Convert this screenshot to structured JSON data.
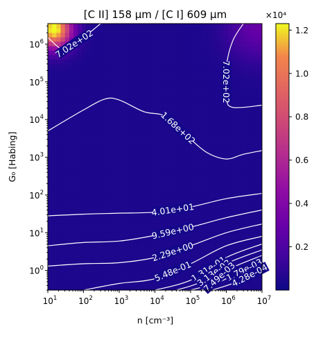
{
  "chart_data": {
    "type": "heatmap",
    "title": "[C II] 158 μm / [C I] 609 μm",
    "xlabel": "n [cm⁻³]",
    "ylabel": "G₀ [Habing]",
    "xscale": "log",
    "yscale": "log",
    "xlim": [
      10,
      10000000
    ],
    "ylim": [
      0.3,
      3500000
    ],
    "x_ticks": [
      {
        "value": 10,
        "base": "10",
        "exp": "1"
      },
      {
        "value": 100,
        "base": "10",
        "exp": "2"
      },
      {
        "value": 1000,
        "base": "10",
        "exp": "3"
      },
      {
        "value": 10000,
        "base": "10",
        "exp": "4"
      },
      {
        "value": 100000,
        "base": "10",
        "exp": "5"
      },
      {
        "value": 1000000,
        "base": "10",
        "exp": "6"
      },
      {
        "value": 10000000,
        "base": "10",
        "exp": "7"
      }
    ],
    "y_ticks": [
      {
        "value": 1,
        "base": "10",
        "exp": "0"
      },
      {
        "value": 10,
        "base": "10",
        "exp": "1"
      },
      {
        "value": 100,
        "base": "10",
        "exp": "2"
      },
      {
        "value": 1000,
        "base": "10",
        "exp": "3"
      },
      {
        "value": 10000,
        "base": "10",
        "exp": "4"
      },
      {
        "value": 100000,
        "base": "10",
        "exp": "5"
      },
      {
        "value": 1000000,
        "base": "10",
        "exp": "6"
      }
    ],
    "colorbar": {
      "colormap": "plasma",
      "range": [
        0,
        12300
      ],
      "multiplier": "×10⁴",
      "ticks": [
        {
          "value": 2000,
          "label": "0.2"
        },
        {
          "value": 4000,
          "label": "0.4"
        },
        {
          "value": 6000,
          "label": "0.6"
        },
        {
          "value": 8000,
          "label": "0.8"
        },
        {
          "value": 10000,
          "label": "1.0"
        },
        {
          "value": 12000,
          "label": "1.2"
        }
      ]
    },
    "contours": [
      {
        "level": 702,
        "label": "7.02e+02",
        "points": [
          [
            10,
            1500000
          ],
          [
            30,
            700000
          ],
          [
            100,
            1500000
          ],
          [
            300,
            3500000
          ]
        ]
      },
      {
        "level": 702,
        "label": "7.02e+02",
        "points": [
          [
            3000000,
            3500000
          ],
          [
            1500000,
            1200000
          ],
          [
            1000000,
            250000
          ],
          [
            1000000,
            40000
          ],
          [
            1500000,
            21000
          ],
          [
            10000000,
            24000
          ]
        ]
      },
      {
        "level": 168,
        "label": "1.68e+02",
        "points": [
          [
            10,
            5000
          ],
          [
            100,
            18000
          ],
          [
            400,
            35000
          ],
          [
            1000,
            33000
          ],
          [
            5000,
            16000
          ],
          [
            20000,
            12000
          ],
          [
            100000,
            3000
          ],
          [
            300000,
            1300
          ],
          [
            1000000,
            900
          ],
          [
            3000000,
            1200
          ],
          [
            10000000,
            1500
          ]
        ]
      },
      {
        "level": 40.1,
        "label": "4.01e+01",
        "points": [
          [
            10,
            28
          ],
          [
            100,
            31
          ],
          [
            1000,
            33
          ],
          [
            10000,
            35
          ],
          [
            100000,
            48
          ],
          [
            1000000,
            80
          ],
          [
            10000000,
            110
          ]
        ]
      },
      {
        "level": 9.59,
        "label": "9.59e+00",
        "points": [
          [
            10,
            4.5
          ],
          [
            100,
            5.5
          ],
          [
            1000,
            6
          ],
          [
            10000,
            8.5
          ],
          [
            100000,
            14
          ],
          [
            1000000,
            25
          ],
          [
            10000000,
            40
          ]
        ]
      },
      {
        "level": 2.29,
        "label": "2.29e+00",
        "points": [
          [
            10,
            1.3
          ],
          [
            100,
            1.5
          ],
          [
            1000,
            1.6
          ],
          [
            10000,
            2.2
          ],
          [
            100000,
            4.5
          ],
          [
            1000000,
            10
          ],
          [
            10000000,
            17
          ]
        ]
      },
      {
        "level": 0.548,
        "label": "5.48e-01",
        "points": [
          [
            100,
            0.3
          ],
          [
            1000,
            0.45
          ],
          [
            10000,
            0.6
          ],
          [
            100000,
            1.5
          ],
          [
            1000000,
            4.5
          ],
          [
            10000000,
            8
          ]
        ]
      },
      {
        "level": 0.131,
        "label": "1.31e-01",
        "points": [
          [
            10000,
            0.3
          ],
          [
            100000,
            0.55
          ],
          [
            1000000,
            2.2
          ],
          [
            10000000,
            5
          ]
        ]
      },
      {
        "level": 0.0313,
        "label": "3.13e-02",
        "points": [
          [
            40000,
            0.3
          ],
          [
            200000,
            0.5
          ],
          [
            1000000,
            1.5
          ],
          [
            10000000,
            3.5
          ]
        ]
      },
      {
        "level": 0.00749,
        "label": "7.49e-03",
        "points": [
          [
            100000,
            0.3
          ],
          [
            400000,
            0.45
          ],
          [
            1000000,
            1
          ],
          [
            10000000,
            2.5
          ]
        ]
      },
      {
        "level": 0.00179,
        "label": "1.79e-03",
        "points": [
          [
            200000,
            0.3
          ],
          [
            1000000,
            0.6
          ],
          [
            10000000,
            1.8
          ]
        ]
      },
      {
        "level": 0.000428,
        "label": "4.28e-04",
        "points": [
          [
            400000,
            0.3
          ],
          [
            2000000,
            0.5
          ],
          [
            10000000,
            1.1
          ]
        ]
      }
    ],
    "hotspots": [
      {
        "n": 15,
        "G0": 2500000,
        "value": 12300,
        "spread": 0.35
      },
      {
        "n": 8000000,
        "G0": 3000000,
        "value": 2500,
        "spread": 0.6
      }
    ],
    "background_value": 450
  }
}
